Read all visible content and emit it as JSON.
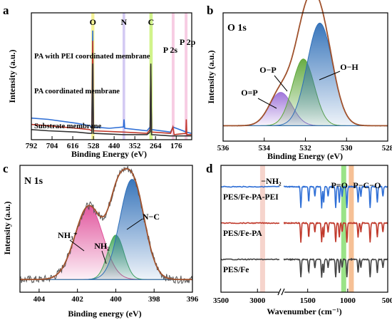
{
  "chart_data": [
    {
      "panel": "a",
      "type": "line",
      "xlabel": "Binding Energy (eV)",
      "ylabel": "Intensity (a.u.)",
      "xlim": [
        792,
        110
      ],
      "xticks": [
        792,
        704,
        616,
        528,
        440,
        352,
        264,
        176
      ],
      "highlight_bands": [
        {
          "label": "O",
          "x": [
            537,
            524
          ],
          "color": "#f3ef7a"
        },
        {
          "label": "N",
          "x": [
            404,
            393
          ],
          "color": "#c9bdf0"
        },
        {
          "label": "C",
          "x": [
            290,
            276
          ],
          "color": "#c5f06e"
        },
        {
          "label": "P 2s",
          "x": [
            195,
            183
          ],
          "color": "#f5c0dc"
        },
        {
          "label": "P 2p",
          "x": [
            140,
            128
          ],
          "color": "#f5c0dc"
        }
      ],
      "series": [
        {
          "name": "PA with PEI coordinated membrane",
          "color": "#2f6fd6",
          "points": [
            [
              792,
              0.17
            ],
            [
              720,
              0.16
            ],
            [
              600,
              0.13
            ],
            [
              545,
              0.11
            ],
            [
              535,
              0.1
            ],
            [
              531,
              0.86
            ],
            [
              528,
              0.1
            ],
            [
              460,
              0.09
            ],
            [
              400,
              0.1
            ],
            [
              398,
              0.16
            ],
            [
              395,
              0.09
            ],
            [
              300,
              0.07
            ],
            [
              287,
              0.1
            ],
            [
              284,
              0.42
            ],
            [
              281,
              0.08
            ],
            [
              200,
              0.06
            ],
            [
              190,
              0.1
            ],
            [
              133,
              0.06
            ],
            [
              112,
              0.05
            ]
          ]
        },
        {
          "name": "PA coordinated membrane",
          "color": "#c0392b",
          "points": [
            [
              792,
              0.12
            ],
            [
              720,
              0.11
            ],
            [
              600,
              0.09
            ],
            [
              545,
              0.08
            ],
            [
              535,
              0.07
            ],
            [
              531,
              0.78
            ],
            [
              528,
              0.07
            ],
            [
              400,
              0.06
            ],
            [
              300,
              0.05
            ],
            [
              287,
              0.08
            ],
            [
              284,
              0.58
            ],
            [
              281,
              0.06
            ],
            [
              200,
              0.05
            ],
            [
              190,
              0.1
            ],
            [
              185,
              0.04
            ],
            [
              135,
              0.05
            ],
            [
              133,
              0.16
            ],
            [
              131,
              0.04
            ],
            [
              112,
              0.04
            ]
          ]
        },
        {
          "name": "Substrate membrane",
          "color": "#333333",
          "points": [
            [
              792,
              0.08
            ],
            [
              720,
              0.07
            ],
            [
              600,
              0.06
            ],
            [
              545,
              0.05
            ],
            [
              535,
              0.05
            ],
            [
              531,
              0.6
            ],
            [
              528,
              0.05
            ],
            [
              400,
              0.04
            ],
            [
              300,
              0.04
            ],
            [
              287,
              0.06
            ],
            [
              284,
              0.6
            ],
            [
              281,
              0.04
            ],
            [
              200,
              0.03
            ],
            [
              112,
              0.03
            ]
          ]
        }
      ]
    },
    {
      "panel": "b",
      "title": "O 1s",
      "type": "area",
      "xlabel": "Binding Energy (eV)",
      "ylabel": "Intensity (a.u.)",
      "xlim": [
        536,
        528
      ],
      "xticks": [
        536,
        534,
        532,
        530,
        528
      ],
      "baseline": 0.12,
      "peaks": [
        {
          "label": "O=P",
          "center": 533.2,
          "height": 0.26,
          "fwhm": 1.3,
          "color": "#9b6fd8"
        },
        {
          "label": "O−P",
          "center": 532.1,
          "height": 0.52,
          "fwhm": 1.25,
          "color": "#5fa83a"
        },
        {
          "label": "O−H",
          "center": 531.3,
          "height": 0.8,
          "fwhm": 1.45,
          "color": "#2f6fb8"
        }
      ]
    },
    {
      "panel": "c",
      "title": "N 1s",
      "type": "area",
      "xlabel": "Binding energy (eV)",
      "ylabel": "Intensity (a.u.)",
      "xlim": [
        405,
        396
      ],
      "xticks": [
        404,
        402,
        400,
        398,
        396
      ],
      "baseline": 0.1,
      "peaks": [
        {
          "label": "NH₃⁺",
          "center": 401.4,
          "height": 0.58,
          "fwhm": 1.7,
          "color": "#e0509a"
        },
        {
          "label": "NH₂",
          "center": 400.0,
          "height": 0.35,
          "fwhm": 1.0,
          "color": "#45a85a"
        },
        {
          "label": "N−C",
          "center": 399.15,
          "height": 0.79,
          "fwhm": 1.5,
          "color": "#2f6fb8"
        }
      ]
    },
    {
      "panel": "d",
      "type": "line",
      "xlabel": "Wavenumber (cm⁻¹)",
      "xticks": [
        3500,
        3000,
        1500,
        1000,
        500
      ],
      "axis_break": [
        2700,
        1800
      ],
      "band_annotations": [
        {
          "label": "−NH₂",
          "x": 2930,
          "color": "#f5cfc7"
        },
        {
          "label": "P=O",
          "x": 1050,
          "color": "#8fe07a"
        },
        {
          "label": "P−C−O",
          "x": 955,
          "color": "#f5b98a"
        }
      ],
      "series": [
        {
          "name": "PES/Fe-PA-PEI",
          "color": "#2f6fd6",
          "offset": 2.0
        },
        {
          "name": "PES/Fe-PA",
          "color": "#c0392b",
          "offset": 1.0
        },
        {
          "name": "PES/Fe",
          "color": "#444444",
          "offset": 0.0
        }
      ],
      "absorption_bands": [
        1585,
        1487,
        1410,
        1325,
        1300,
        1245,
        1150,
        1105,
        1070,
        1010,
        870,
        835,
        720,
        630,
        560
      ]
    }
  ],
  "panels": {
    "a": {
      "letter": "a",
      "band_labels": [
        "O",
        "N",
        "C",
        "P 2s",
        "P 2p"
      ]
    },
    "b": {
      "letter": "b"
    },
    "c": {
      "letter": "c"
    },
    "d": {
      "letter": "d"
    }
  }
}
